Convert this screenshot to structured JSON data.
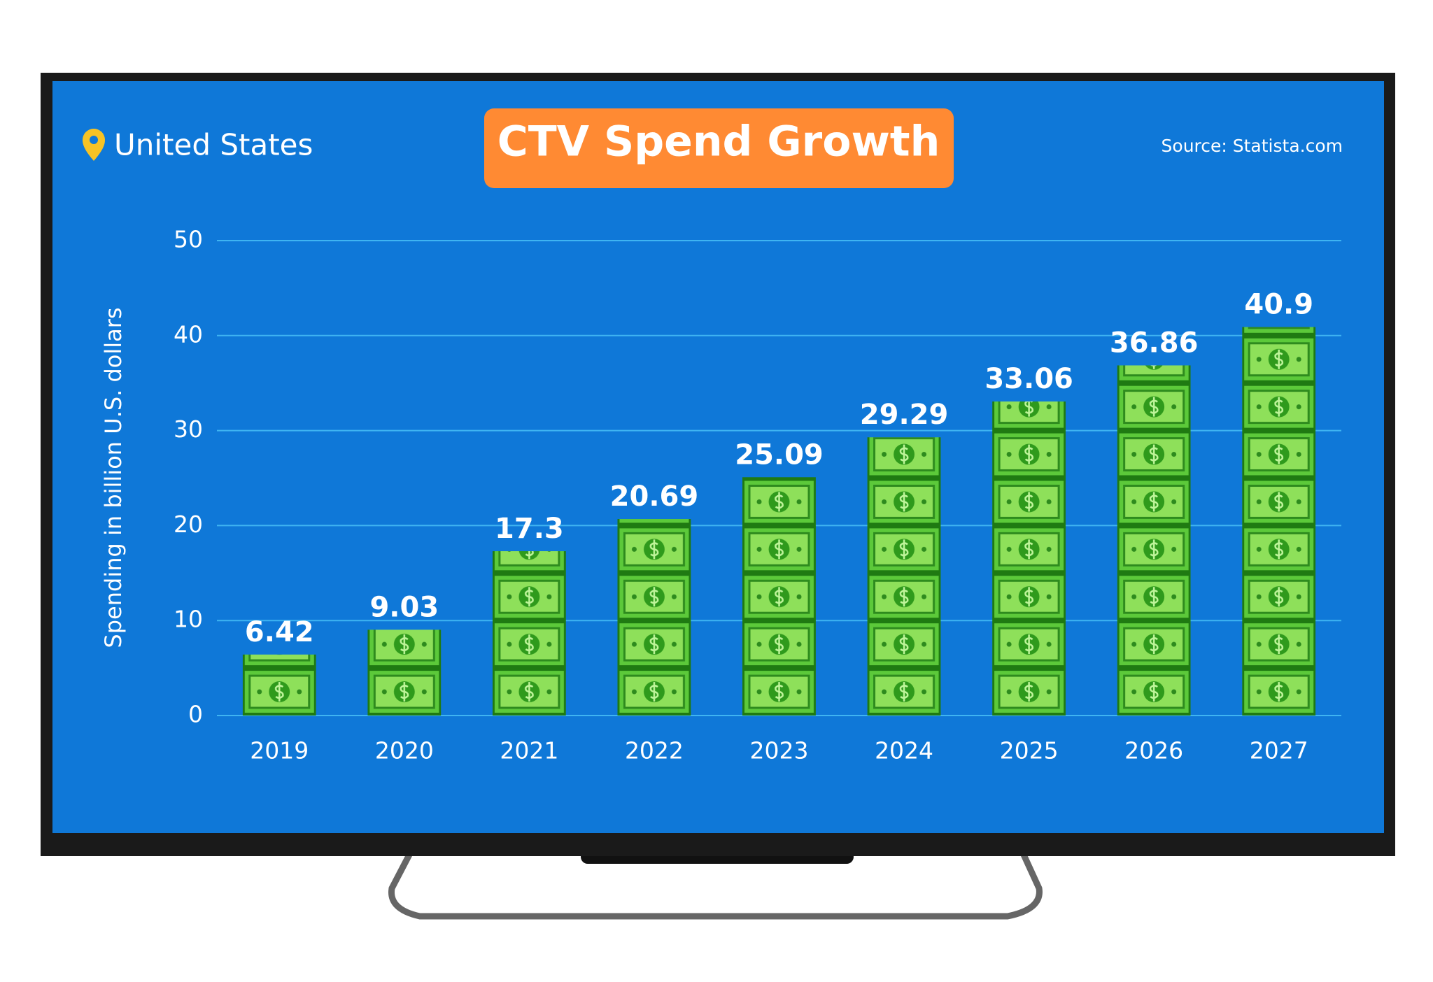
{
  "chart_data": {
    "type": "bar",
    "title": "CTV Spend Growth",
    "location": "United States",
    "source": "Source: Statista.com",
    "y_label": "Spending in billion U.S. dollars",
    "categories": [
      "2019",
      "2020",
      "2021",
      "2022",
      "2023",
      "2024",
      "2025",
      "2026",
      "2027"
    ],
    "values": [
      6.42,
      9.03,
      17.3,
      20.69,
      25.09,
      29.29,
      33.06,
      36.86,
      40.9
    ],
    "color": "#5cc93a",
    "ylim": [
      0,
      50
    ],
    "yticks": [
      0,
      10,
      20,
      30,
      40,
      50
    ],
    "grid": true
  }
}
